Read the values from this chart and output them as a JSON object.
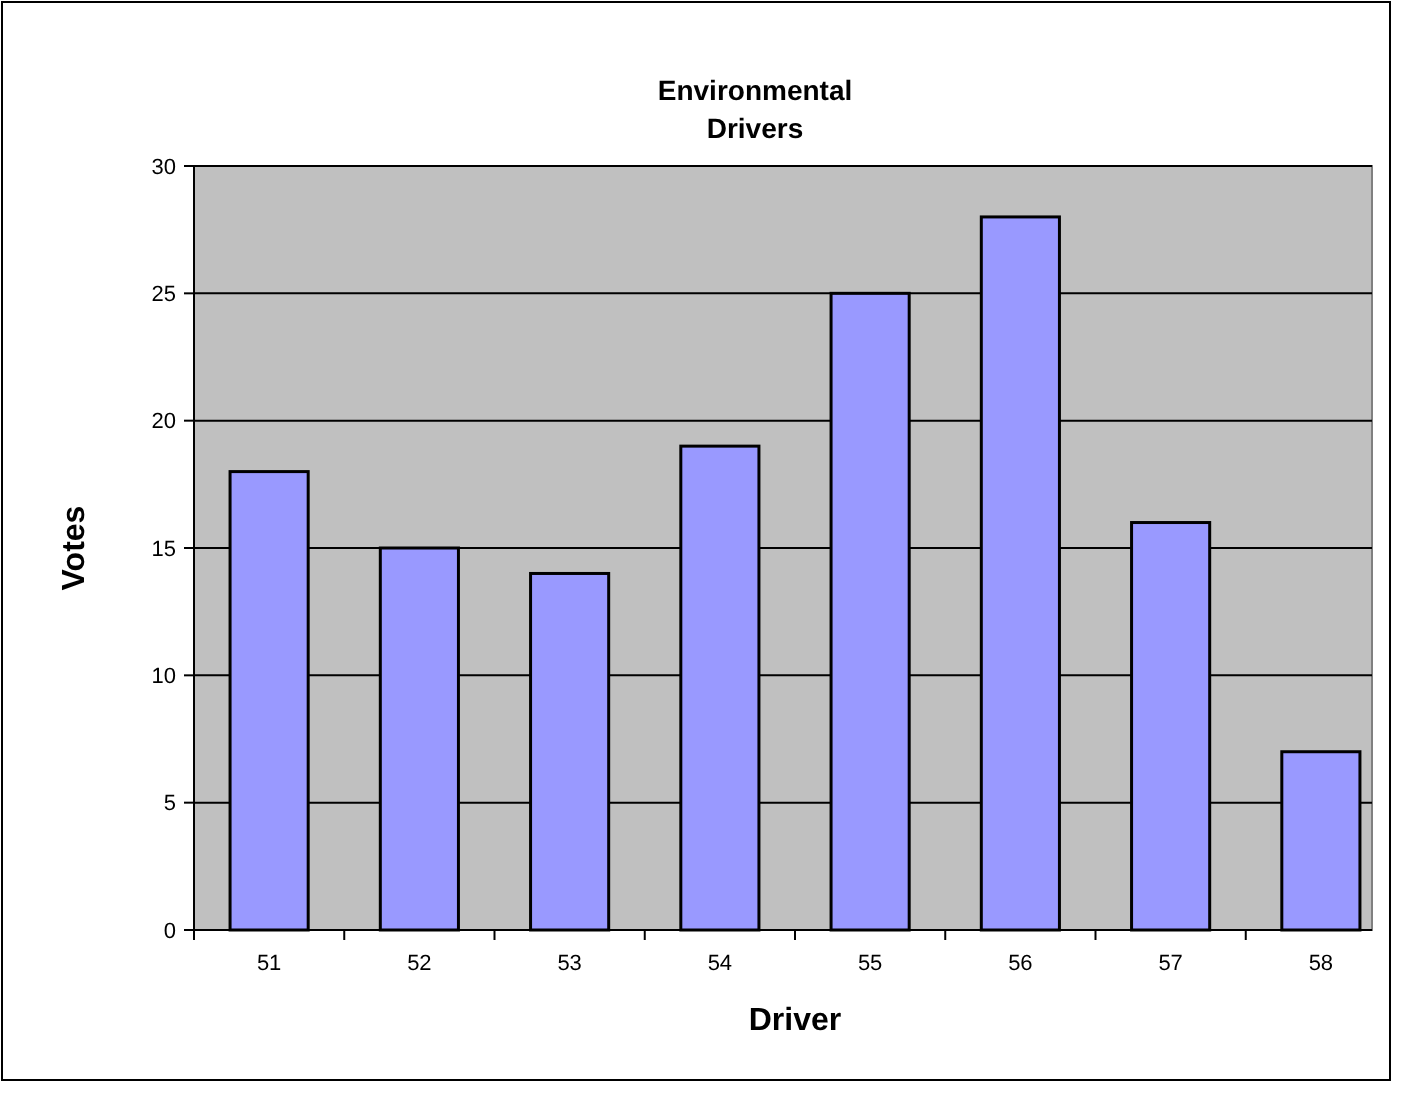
{
  "chart_data": {
    "type": "bar",
    "title": "Environmental Drivers",
    "xlabel": "Driver",
    "ylabel": "Votes",
    "categories": [
      "51",
      "52",
      "53",
      "54",
      "55",
      "56",
      "57",
      "58"
    ],
    "values": [
      18,
      15,
      14,
      19,
      25,
      28,
      16,
      7
    ],
    "color": "#9999ff",
    "ylim": [
      0,
      30
    ],
    "yticks": [
      0,
      5,
      10,
      15,
      20,
      25,
      30
    ],
    "grid": "y"
  }
}
